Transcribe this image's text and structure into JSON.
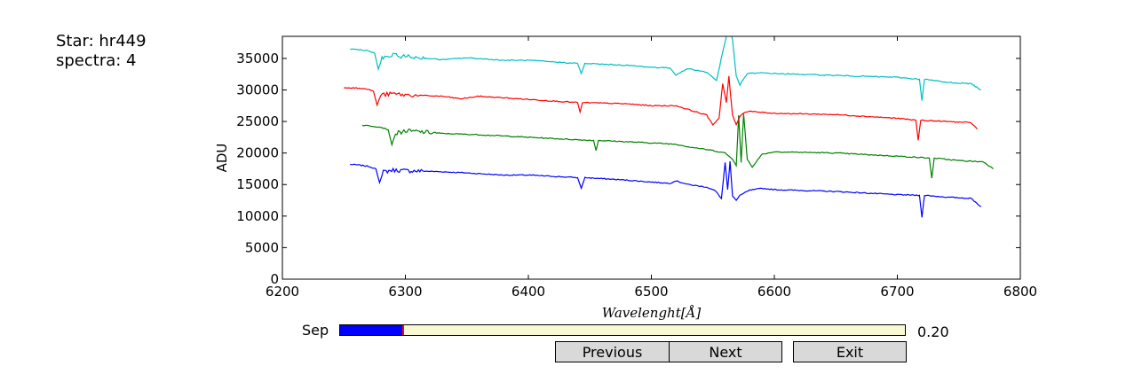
{
  "info": {
    "star_line": "Star: hr449",
    "spectra_line": "spectra: 4"
  },
  "chart_data": {
    "type": "line",
    "xlabel": "Wavelenght[Å]",
    "ylabel": "ADU",
    "xlim": [
      6200,
      6800
    ],
    "ylim": [
      0,
      38500
    ],
    "xticks": [
      6200,
      6300,
      6400,
      6500,
      6600,
      6700,
      6800
    ],
    "yticks": [
      0,
      5000,
      10000,
      15000,
      20000,
      25000,
      30000,
      35000
    ],
    "grid": false,
    "series": [
      {
        "color": "#0000ff",
        "x": [
          6255,
          6262,
          6270,
          6276,
          6279,
          6282,
          6290,
          6300,
          6320,
          6345,
          6380,
          6400,
          6440,
          6443,
          6446,
          6480,
          6500,
          6515,
          6520,
          6530,
          6545,
          6552,
          6557,
          6560,
          6562,
          6564,
          6566,
          6569,
          6572,
          6580,
          6590,
          6600,
          6650,
          6700,
          6718,
          6720,
          6722,
          6740,
          6760,
          6768
        ],
        "y": [
          18200,
          18100,
          17900,
          17500,
          15300,
          17000,
          17300,
          17200,
          17100,
          16900,
          16500,
          16500,
          16100,
          14400,
          16100,
          15700,
          15400,
          15200,
          15600,
          15000,
          14600,
          14000,
          12800,
          18500,
          14200,
          18700,
          13200,
          12500,
          13300,
          14100,
          14400,
          14200,
          13900,
          13400,
          13300,
          9800,
          13300,
          13000,
          12800,
          11500
        ]
      },
      {
        "color": "#008000",
        "x": [
          6265,
          6272,
          6280,
          6286,
          6289,
          6292,
          6300,
          6310,
          6330,
          6360,
          6400,
          6440,
          6453,
          6455,
          6457,
          6500,
          6520,
          6530,
          6550,
          6560,
          6566,
          6569,
          6571,
          6573,
          6575,
          6578,
          6582,
          6590,
          6600,
          6650,
          6700,
          6726,
          6728,
          6730,
          6750,
          6770,
          6778
        ],
        "y": [
          24400,
          24300,
          24100,
          23700,
          21300,
          23100,
          23500,
          23400,
          23100,
          22900,
          22500,
          22100,
          22000,
          20400,
          22000,
          21600,
          21400,
          21000,
          20400,
          20000,
          19000,
          18000,
          26000,
          18500,
          26200,
          19000,
          17800,
          19800,
          20200,
          20000,
          19500,
          19200,
          16000,
          19200,
          18800,
          18600,
          17500
        ]
      },
      {
        "color": "#ff0000",
        "x": [
          6250,
          6260,
          6270,
          6274,
          6277,
          6280,
          6290,
          6300,
          6330,
          6345,
          6360,
          6400,
          6440,
          6442,
          6444,
          6480,
          6500,
          6520,
          6530,
          6545,
          6550,
          6555,
          6558,
          6561,
          6563,
          6566,
          6569,
          6572,
          6575,
          6580,
          6600,
          6650,
          6700,
          6715,
          6717,
          6719,
          6740,
          6760,
          6765
        ],
        "y": [
          30400,
          30300,
          30100,
          29800,
          27600,
          29200,
          29400,
          29200,
          29000,
          28600,
          29000,
          28500,
          28000,
          26500,
          28000,
          27800,
          27500,
          27500,
          26900,
          26000,
          24500,
          25500,
          31000,
          28000,
          32200,
          26000,
          24500,
          25800,
          26400,
          26600,
          26300,
          26100,
          25500,
          25200,
          22000,
          25200,
          25000,
          24800,
          23800
        ]
      },
      {
        "color": "#00bfbf",
        "x": [
          6255,
          6262,
          6270,
          6275,
          6278,
          6281,
          6290,
          6300,
          6330,
          6350,
          6380,
          6400,
          6440,
          6443,
          6446,
          6480,
          6500,
          6515,
          6520,
          6530,
          6545,
          6553,
          6558,
          6561,
          6563,
          6566,
          6569,
          6572,
          6578,
          6590,
          6600,
          6650,
          6700,
          6718,
          6720,
          6722,
          6740,
          6760,
          6768
        ],
        "y": [
          36500,
          36400,
          36200,
          35800,
          33300,
          35000,
          35500,
          35300,
          34800,
          35100,
          34700,
          34700,
          34200,
          32600,
          34200,
          33900,
          33600,
          33500,
          32400,
          33400,
          32800,
          31500,
          36000,
          38500,
          40500,
          38000,
          32200,
          30800,
          32600,
          32700,
          32600,
          32300,
          32000,
          31700,
          28300,
          31700,
          31200,
          31000,
          30000
        ]
      }
    ]
  },
  "slider": {
    "label": "Sep",
    "value_text": "0.20",
    "value": 0.2,
    "min": 0,
    "max": 1.8
  },
  "buttons": {
    "previous": "Previous",
    "next": "Next",
    "exit": "Exit"
  }
}
